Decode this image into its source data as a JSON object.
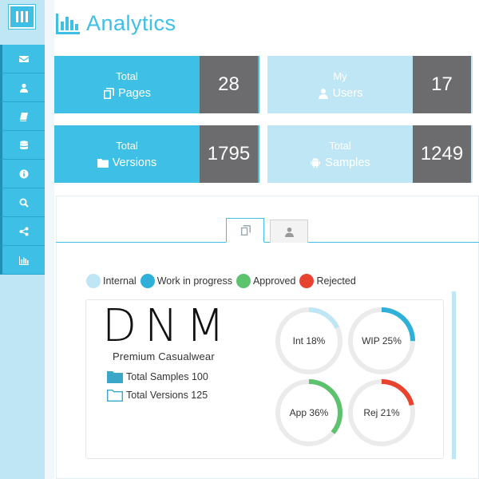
{
  "header": {
    "title": "Analytics",
    "icon": "bar-chart-icon"
  },
  "sidebar": {
    "toggle_icon": "menu-bars-icon",
    "items": [
      {
        "icon": "envelope-icon"
      },
      {
        "icon": "user-icon"
      },
      {
        "icon": "book-icon"
      },
      {
        "icon": "database-icon"
      },
      {
        "icon": "info-icon"
      },
      {
        "icon": "search-icon"
      },
      {
        "icon": "share-icon"
      },
      {
        "icon": "bar-chart-icon"
      }
    ]
  },
  "stats": [
    {
      "top": "Total",
      "main": "Pages",
      "icon": "copy-icon",
      "value": "28",
      "style": "dark"
    },
    {
      "top": "My",
      "main": "Users",
      "icon": "user-icon",
      "value": "17",
      "style": "light"
    },
    {
      "top": "Total",
      "main": "Versions",
      "icon": "folder-icon",
      "value": "1795",
      "style": "dark"
    },
    {
      "top": "Total",
      "main": "Samples",
      "icon": "android-icon",
      "value": "1249",
      "style": "light"
    }
  ],
  "tabs": [
    {
      "icon": "copy-icon",
      "active": true
    },
    {
      "icon": "user-icon",
      "active": false
    }
  ],
  "legend": [
    {
      "label": "Internal",
      "color": "#bfe6f4"
    },
    {
      "label": "Work in progress",
      "color": "#2fb0d8"
    },
    {
      "label": "Approved",
      "color": "#5dc26e"
    },
    {
      "label": "Rejected",
      "color": "#e8432e"
    }
  ],
  "brand": {
    "name": "DNM",
    "tagline": "Premium Casualwear"
  },
  "counts": [
    {
      "label": "Total Samples 100",
      "icon": "folder-filled-icon"
    },
    {
      "label": "Total Versions 125",
      "icon": "folder-open-icon"
    }
  ],
  "donuts": [
    {
      "label": "Int 18%",
      "percent": 18,
      "color": "#bfe6f4"
    },
    {
      "label": "WIP 25%",
      "percent": 25,
      "color": "#2fb0d8"
    },
    {
      "label": "App 36%",
      "percent": 36,
      "color": "#5dc26e"
    },
    {
      "label": "Rej 21%",
      "percent": 21,
      "color": "#e8432e"
    }
  ]
}
